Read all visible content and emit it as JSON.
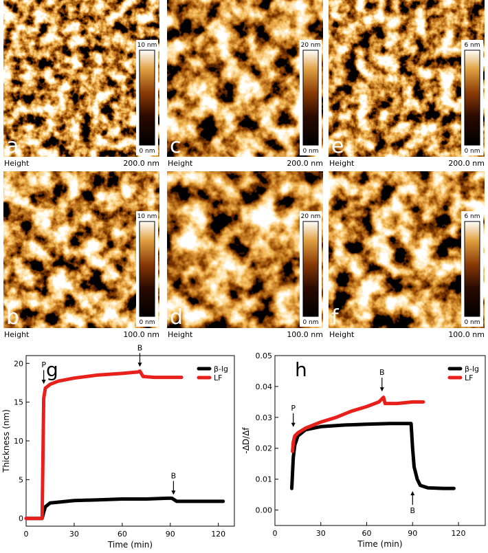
{
  "afm_panels": [
    {
      "letter": "a",
      "channel": "Height",
      "scale": "200.0 nm",
      "colorbar_max": "10 nm",
      "colorbar_min": "0 nm"
    },
    {
      "letter": "c",
      "channel": "Height",
      "scale": "200.0 nm",
      "colorbar_max": "20 nm",
      "colorbar_min": "0 nm"
    },
    {
      "letter": "e",
      "channel": "Height",
      "scale": "200.0 nm",
      "colorbar_max": "6 nm",
      "colorbar_min": "0 nm"
    },
    {
      "letter": "b",
      "channel": "Height",
      "scale": "100.0 nm",
      "colorbar_max": "10 nm",
      "colorbar_min": "0 nm"
    },
    {
      "letter": "d",
      "channel": "Height",
      "scale": "100.0 nm",
      "colorbar_max": "20 nm",
      "colorbar_min": "0 nm"
    },
    {
      "letter": "f",
      "channel": "Height",
      "scale": "100.0 nm",
      "colorbar_max": "6 nm",
      "colorbar_min": "0 nm"
    }
  ],
  "chart_data": [
    {
      "type": "line",
      "panel_label": "g",
      "x_label": "Time (min)",
      "y_label": "Thickness (nm)",
      "xlim": [
        0,
        130
      ],
      "xticks": [
        0,
        30,
        60,
        90,
        120
      ],
      "ylim": [
        -1,
        21
      ],
      "yticks": [
        0,
        5,
        10,
        15,
        20
      ],
      "legend": "upper right",
      "series": [
        {
          "name": "β-lg",
          "color": "#000000",
          "x": [
            0,
            10,
            11,
            12,
            15,
            20,
            30,
            45,
            60,
            75,
            88,
            91,
            94,
            100,
            110,
            123
          ],
          "values": [
            0,
            0,
            0.8,
            1.5,
            2,
            2.1,
            2.3,
            2.4,
            2.5,
            2.5,
            2.6,
            2.6,
            2.2,
            2.2,
            2.2,
            2.2
          ]
        },
        {
          "name": "LF",
          "color": "#e8201c",
          "x": [
            0,
            10,
            10.5,
            11,
            12,
            15,
            20,
            30,
            45,
            60,
            70,
            71,
            73,
            80,
            90,
            97
          ],
          "values": [
            0,
            0,
            8,
            15.5,
            16.8,
            17.3,
            17.7,
            18.1,
            18.5,
            18.7,
            18.9,
            19,
            18.3,
            18.2,
            18.2,
            18.2
          ]
        }
      ],
      "annotations": [
        {
          "text": "P",
          "x": 11,
          "y": 17,
          "arrow": "down"
        },
        {
          "text": "B",
          "x": 71,
          "y": 19.2,
          "arrow": "down"
        },
        {
          "text": "B",
          "x": 92,
          "y": 2.7,
          "arrow": "down"
        }
      ]
    },
    {
      "type": "line",
      "panel_label": "h",
      "x_label": "Time (min)",
      "y_label": "-ΔD/Δf",
      "xlim": [
        0,
        137.5
      ],
      "xticks": [
        0,
        30,
        60,
        90,
        120
      ],
      "ylim": [
        -0.005,
        0.05
      ],
      "yticks": [
        {
          "value": 0,
          "label": "0.00"
        },
        {
          "value": 0.01,
          "label": "0.01"
        },
        {
          "value": 0.02,
          "label": "0.02"
        },
        {
          "value": 0.03,
          "label": "0.03"
        },
        {
          "value": 0.04,
          "label": "0.04"
        },
        {
          "value": 0.05,
          "label": "0.05"
        }
      ],
      "legend": "upper right",
      "series": [
        {
          "name": "β-lg",
          "color": "#000000",
          "x": [
            11,
            12,
            13,
            15,
            20,
            30,
            45,
            60,
            75,
            85,
            89,
            90,
            91,
            93,
            95,
            100,
            110,
            117
          ],
          "values": [
            0.007,
            0.017,
            0.021,
            0.024,
            0.026,
            0.027,
            0.0275,
            0.0278,
            0.028,
            0.028,
            0.028,
            0.02,
            0.014,
            0.01,
            0.008,
            0.0072,
            0.007,
            0.007
          ]
        },
        {
          "name": "LF",
          "color": "#e8201c",
          "x": [
            11.5,
            12,
            13,
            15,
            20,
            30,
            40,
            50,
            60,
            68,
            70,
            71,
            72,
            80,
            90,
            97
          ],
          "values": [
            0.019,
            0.022,
            0.024,
            0.025,
            0.0265,
            0.0285,
            0.03,
            0.032,
            0.0335,
            0.035,
            0.036,
            0.0365,
            0.0345,
            0.0345,
            0.035,
            0.035
          ]
        }
      ],
      "annotations": [
        {
          "text": "P",
          "x": 12,
          "y": 0.026,
          "arrow": "down"
        },
        {
          "text": "B",
          "x": 70,
          "y": 0.0375,
          "arrow": "down"
        },
        {
          "text": "B",
          "x": 90,
          "y": 0.007,
          "arrow": "up"
        }
      ]
    }
  ]
}
